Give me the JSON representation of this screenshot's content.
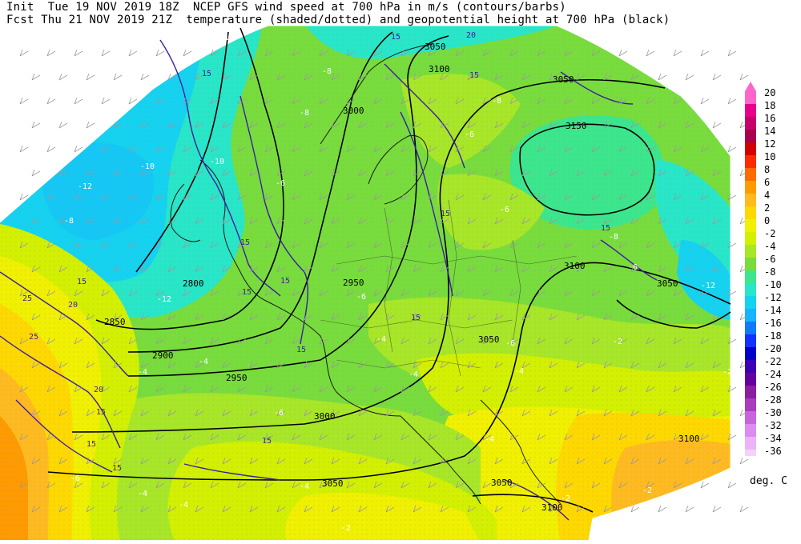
{
  "header": {
    "line1": "Init  Tue 19 NOV 2019 18Z  NCEP GFS wind speed at 700 hPa in m/s (contours/barbs)",
    "line2": "Fcst Thu 21 NOV 2019 21Z  temperature (shaded/dotted) and geopotential height at 700 hPa (black)"
  },
  "legend": {
    "unit": "deg. C",
    "entries": [
      {
        "label": "20",
        "color": "#ff66cc"
      },
      {
        "label": "18",
        "color": "#e8008a"
      },
      {
        "label": "16",
        "color": "#c8006a"
      },
      {
        "label": "14",
        "color": "#a8004c"
      },
      {
        "label": "12",
        "color": "#d20000"
      },
      {
        "label": "10",
        "color": "#ff2a00"
      },
      {
        "label": "8",
        "color": "#ff6a00"
      },
      {
        "label": "6",
        "color": "#ff9a00"
      },
      {
        "label": "4",
        "color": "#ffba20"
      },
      {
        "label": "2",
        "color": "#ffd800"
      },
      {
        "label": "0",
        "color": "#f0f000"
      },
      {
        "label": "-2",
        "color": "#d2f000"
      },
      {
        "label": "-4",
        "color": "#a8e628"
      },
      {
        "label": "-6",
        "color": "#78dc3c"
      },
      {
        "label": "-8",
        "color": "#3ce68c"
      },
      {
        "label": "-10",
        "color": "#28e6c8"
      },
      {
        "label": "-12",
        "color": "#14d2f0"
      },
      {
        "label": "-14",
        "color": "#14b4ff"
      },
      {
        "label": "-16",
        "color": "#1478ff"
      },
      {
        "label": "-18",
        "color": "#1432ff"
      },
      {
        "label": "-20",
        "color": "#0000c8"
      },
      {
        "label": "-22",
        "color": "#3c00b4"
      },
      {
        "label": "-24",
        "color": "#6400a0"
      },
      {
        "label": "-26",
        "color": "#8c1ea0"
      },
      {
        "label": "-28",
        "color": "#aa3cbe"
      },
      {
        "label": "-30",
        "color": "#c864dc"
      },
      {
        "label": "-32",
        "color": "#dc8cf0"
      },
      {
        "label": "-34",
        "color": "#ebb4f8"
      },
      {
        "label": "-36",
        "color": "#f5d2fc"
      }
    ]
  },
  "height_labels": [
    "3050",
    "3100",
    "3050",
    "3000",
    "3150",
    "2800",
    "2850",
    "2950",
    "3100",
    "3050",
    "2900",
    "2950",
    "3000",
    "3050",
    "3050",
    "3100",
    "3050",
    "3100"
  ],
  "wind_labels": [
    "15",
    "20",
    "15",
    "15",
    "15",
    "15",
    "15",
    "15",
    "20",
    "15",
    "25",
    "15",
    "15",
    "20",
    "15",
    "15",
    "15",
    "15",
    "25",
    "15"
  ],
  "temp_labels": [
    "-10",
    "-8",
    "-8",
    "-8",
    "-6",
    "-6",
    "-10",
    "-12",
    "-8",
    "-10",
    "-12",
    "-6",
    "-8",
    "-6",
    "-12",
    "-6",
    "-4",
    "-6",
    "-2",
    "-4",
    "-4",
    "-4",
    "-2",
    "-6",
    "-4",
    "-4",
    "-4",
    "-6",
    "-2",
    "-2",
    "-4",
    "-2",
    "-4"
  ]
}
